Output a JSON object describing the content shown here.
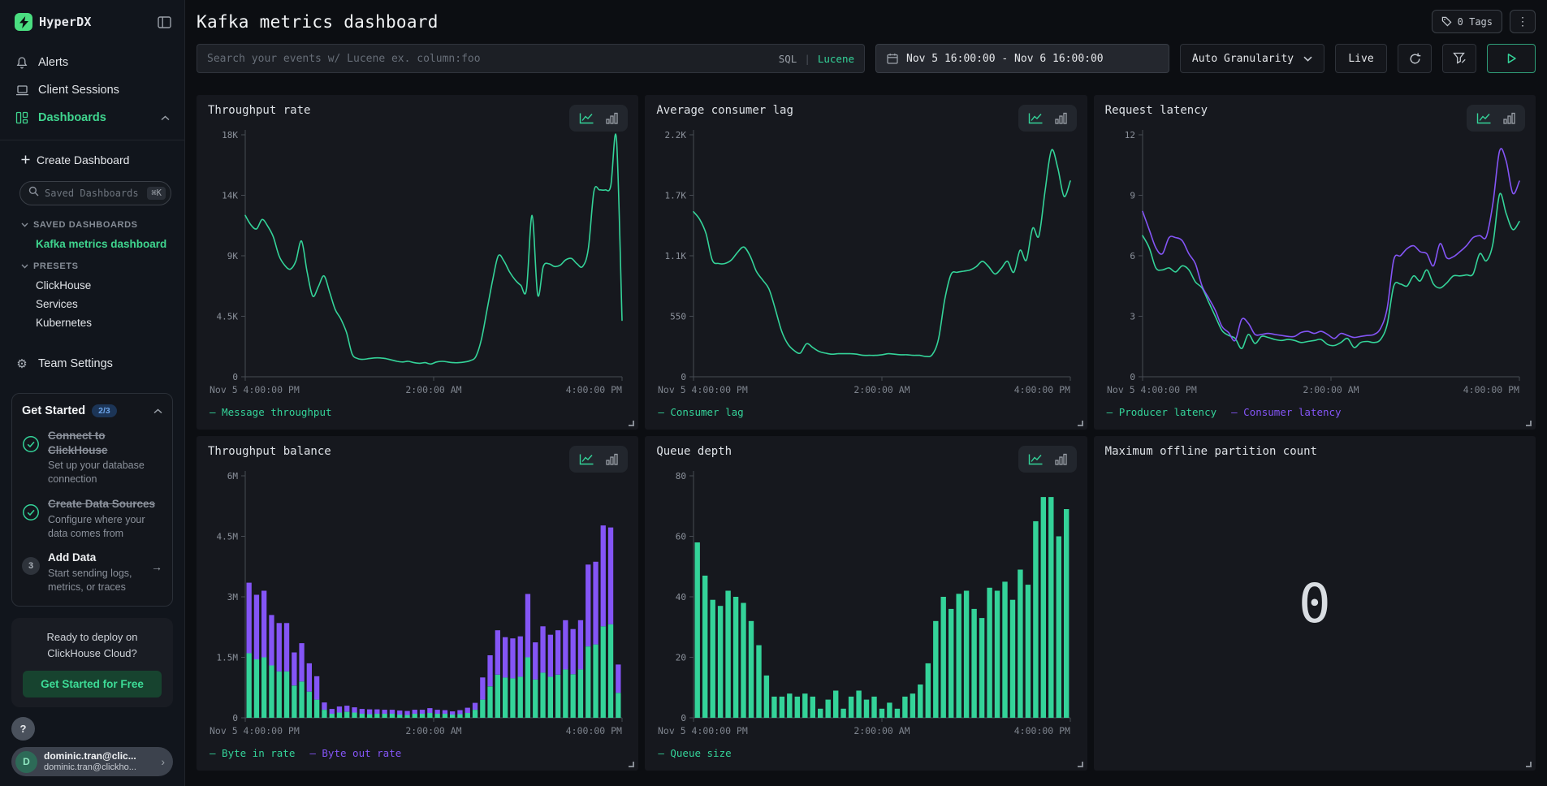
{
  "colors": {
    "accent_green": "#34d399",
    "brand_green": "#4ade80",
    "purple": "#8455f6",
    "badge_blue": "#6ba3e8",
    "button_green_bg": "#17432f"
  },
  "sidebar": {
    "brand": "HyperDX",
    "nav": [
      {
        "label": "Alerts",
        "icon": "bell"
      },
      {
        "label": "Client Sessions",
        "icon": "laptop"
      },
      {
        "label": "Dashboards",
        "icon": "dashboard-grid"
      }
    ],
    "create_dashboard": "Create Dashboard",
    "search": {
      "placeholder": "Saved Dashboards",
      "shortcut": "⌘K"
    },
    "saved_section": {
      "title": "SAVED DASHBOARDS",
      "items": [
        {
          "label": "Kafka metrics dashboard"
        }
      ]
    },
    "presets_section": {
      "title": "PRESETS",
      "items": [
        {
          "label": "ClickHouse"
        },
        {
          "label": "Services"
        },
        {
          "label": "Kubernetes"
        }
      ]
    },
    "team_settings": "Team Settings",
    "get_started": {
      "title": "Get Started",
      "progress": "2/3",
      "items": [
        {
          "title": "Connect to ClickHouse",
          "subtitle": "Set up your database connection",
          "done": true
        },
        {
          "title": "Create Data Sources",
          "subtitle": "Configure where your data comes from",
          "done": true
        },
        {
          "title": "Add Data",
          "subtitle": "Start sending logs, metrics, or traces",
          "done": false,
          "step": "3",
          "arrow": "→"
        }
      ]
    },
    "promo": {
      "line1": "Ready to deploy on",
      "line2": "ClickHouse Cloud?",
      "button": "Get Started for Free"
    },
    "help": "?",
    "user": {
      "initial": "D",
      "name": "dominic.tran@clic...",
      "email": "dominic.tran@clickho...",
      "chevron": "›"
    }
  },
  "header": {
    "title": "Kafka metrics dashboard",
    "tags_label": "0 Tags",
    "kebab": "⋮"
  },
  "toolbar": {
    "search_placeholder": "Search your events w/ Lucene ex. column:foo",
    "sql": "SQL",
    "separator": "|",
    "lucene": "Lucene",
    "date_range": "Nov 5 16:00:00 - Nov 6 16:00:00",
    "granularity": "Auto Granularity",
    "live": "Live"
  },
  "chart_data": [
    {
      "type": "line",
      "title": "Throughput rate",
      "ylim": [
        0,
        18000
      ],
      "y_ticks": {
        "values": [
          0,
          4500,
          9000,
          13500,
          18000
        ],
        "labels": [
          "0",
          "4.5K",
          "9K",
          "14K",
          "18K"
        ]
      },
      "x_labels": [
        "Nov 5 4:00:00 PM",
        "2:00:00 AM",
        "4:00:00 PM"
      ],
      "series": [
        {
          "name": "Message throughput",
          "color": "#34d399",
          "values": [
            12000,
            11300,
            11000,
            11700,
            11200,
            10400,
            9000,
            8300,
            8000,
            8600,
            10100,
            7800,
            6000,
            6700,
            7500,
            6300,
            5000,
            4300,
            3300,
            1700,
            1350,
            1300,
            1350,
            1400,
            1400,
            1350,
            1250,
            1150,
            1100,
            1150,
            1050,
            1000,
            1050,
            950,
            1100,
            1150,
            1100,
            1050,
            1050,
            1100,
            1200,
            1500,
            2800,
            5000,
            7200,
            9000,
            8600,
            7800,
            7200,
            6800,
            6500,
            12000,
            6100,
            8200,
            8400,
            8200,
            8300,
            8700,
            8800,
            8400,
            8200,
            9500,
            13800,
            13900,
            13900,
            14200,
            17700,
            4200
          ]
        }
      ]
    },
    {
      "type": "line",
      "title": "Average consumer lag",
      "ylim": [
        0,
        2200
      ],
      "y_ticks": {
        "values": [
          0,
          550,
          1100,
          1650,
          2200
        ],
        "labels": [
          "0",
          "550",
          "1.1K",
          "1.7K",
          "2.2K"
        ]
      },
      "x_labels": [
        "Nov 5 4:00:00 PM",
        "2:00:00 AM",
        "4:00:00 PM"
      ],
      "series": [
        {
          "name": "Consumer lag",
          "color": "#34d399",
          "values": [
            1500,
            1430,
            1300,
            1060,
            1030,
            1030,
            1060,
            1130,
            1180,
            1100,
            960,
            880,
            800,
            620,
            420,
            300,
            240,
            215,
            300,
            265,
            230,
            215,
            205,
            210,
            210,
            210,
            205,
            195,
            195,
            195,
            200,
            210,
            205,
            200,
            200,
            195,
            195,
            185,
            200,
            340,
            700,
            930,
            950,
            960,
            970,
            1000,
            1050,
            1000,
            935,
            985,
            1050,
            950,
            1150,
            1060,
            1350,
            1280,
            1700,
            2060,
            1900,
            1640,
            1780
          ]
        }
      ]
    },
    {
      "type": "line",
      "title": "Request latency",
      "ylim": [
        0,
        12
      ],
      "y_ticks": {
        "values": [
          0,
          3,
          6,
          9,
          12
        ],
        "labels": [
          "0",
          "3",
          "6",
          "9",
          "12"
        ]
      },
      "x_labels": [
        "Nov 5 4:00:00 PM",
        "2:00:00 AM",
        "4:00:00 PM"
      ],
      "series": [
        {
          "name": "Producer latency",
          "color": "#34d399",
          "values": [
            7.0,
            6.4,
            5.4,
            5.3,
            5.4,
            5.2,
            5.5,
            5.3,
            4.7,
            4.4,
            3.7,
            3.0,
            2.3,
            2.05,
            1.9,
            1.4,
            2.1,
            1.65,
            2.0,
            1.95,
            1.85,
            1.8,
            1.85,
            1.8,
            1.7,
            1.75,
            1.8,
            1.85,
            1.6,
            1.55,
            1.7,
            1.9,
            1.45,
            1.7,
            1.75,
            1.7,
            1.85,
            2.6,
            4.5,
            4.6,
            4.5,
            5.0,
            4.75,
            5.3,
            4.6,
            4.4,
            4.65,
            5.0,
            5.0,
            5.05,
            5.1,
            6.1,
            5.75,
            6.6,
            9.05,
            8.1,
            7.3,
            7.7
          ]
        },
        {
          "name": "Consumer latency",
          "color": "#8455f6",
          "values": [
            8.2,
            7.3,
            6.4,
            6.1,
            6.9,
            6.9,
            6.75,
            6.1,
            5.6,
            4.5,
            3.9,
            3.3,
            2.5,
            2.2,
            1.8,
            2.85,
            2.65,
            2.1,
            2.1,
            2.15,
            2.1,
            2.05,
            2.0,
            2.0,
            2.2,
            2.25,
            2.15,
            2.25,
            2.1,
            1.9,
            2.15,
            2.05,
            1.95,
            2.0,
            2.05,
            2.1,
            2.4,
            3.4,
            5.8,
            6.0,
            6.35,
            6.5,
            6.2,
            6.1,
            5.5,
            6.6,
            5.9,
            5.95,
            6.2,
            6.5,
            6.9,
            7.0,
            6.95,
            8.6,
            11.2,
            10.7,
            9.1,
            9.7
          ]
        }
      ]
    },
    {
      "type": "stacked_bar",
      "title": "Throughput balance",
      "ylim": [
        0,
        6
      ],
      "y_ticks": {
        "values": [
          0,
          1.5,
          3,
          4.5,
          6
        ],
        "labels": [
          "0",
          "1.5M",
          "3M",
          "4.5M",
          "6M"
        ]
      },
      "x_labels": [
        "Nov 5 4:00:00 PM",
        "2:00:00 AM",
        "4:00:00 PM"
      ],
      "series": [
        {
          "name": "Byte in rate",
          "color": "#34d399",
          "values": [
            1.6,
            1.45,
            1.5,
            1.3,
            1.15,
            1.15,
            0.8,
            0.9,
            0.65,
            0.45,
            0.2,
            0.1,
            0.13,
            0.15,
            0.13,
            0.1,
            0.09,
            0.1,
            0.1,
            0.1,
            0.08,
            0.07,
            0.1,
            0.1,
            0.12,
            0.1,
            0.1,
            0.08,
            0.09,
            0.12,
            0.2,
            0.45,
            0.78,
            1.07,
            1.0,
            0.98,
            1.02,
            1.5,
            0.95,
            1.12,
            1.02,
            1.07,
            1.2,
            1.08,
            1.2,
            1.77,
            1.82,
            2.27,
            2.32,
            0.62
          ]
        },
        {
          "name": "Byte out rate",
          "color": "#8455f6",
          "values": [
            1.75,
            1.6,
            1.65,
            1.25,
            1.2,
            1.2,
            0.82,
            0.95,
            0.7,
            0.58,
            0.18,
            0.12,
            0.15,
            0.15,
            0.13,
            0.12,
            0.12,
            0.11,
            0.1,
            0.1,
            0.1,
            0.1,
            0.1,
            0.1,
            0.12,
            0.1,
            0.09,
            0.08,
            0.1,
            0.13,
            0.17,
            0.55,
            0.77,
            1.1,
            1.0,
            0.99,
            1.0,
            1.57,
            0.92,
            1.15,
            1.04,
            1.1,
            1.22,
            1.12,
            1.22,
            2.03,
            2.05,
            2.5,
            2.4,
            0.7
          ]
        }
      ]
    },
    {
      "type": "bar",
      "title": "Queue depth",
      "ylim": [
        0,
        80
      ],
      "y_ticks": {
        "values": [
          0,
          20,
          40,
          60,
          80
        ],
        "labels": [
          "0",
          "20",
          "40",
          "60",
          "80"
        ]
      },
      "x_labels": [
        "Nov 5 4:00:00 PM",
        "2:00:00 AM",
        "4:00:00 PM"
      ],
      "series": [
        {
          "name": "Queue size",
          "color": "#34d399",
          "values": [
            58,
            47,
            39,
            37,
            42,
            40,
            38,
            32,
            24,
            14,
            7,
            7,
            8,
            7,
            8,
            7,
            3,
            6,
            9,
            3,
            7,
            9,
            6,
            7,
            3,
            5,
            3,
            7,
            8,
            11,
            18,
            32,
            40,
            36,
            41,
            42,
            36,
            33,
            43,
            42,
            45,
            39,
            49,
            44,
            65,
            73,
            73,
            60,
            69
          ]
        }
      ]
    },
    {
      "type": "big_number",
      "title": "Maximum offline partition count",
      "value": "0"
    }
  ]
}
